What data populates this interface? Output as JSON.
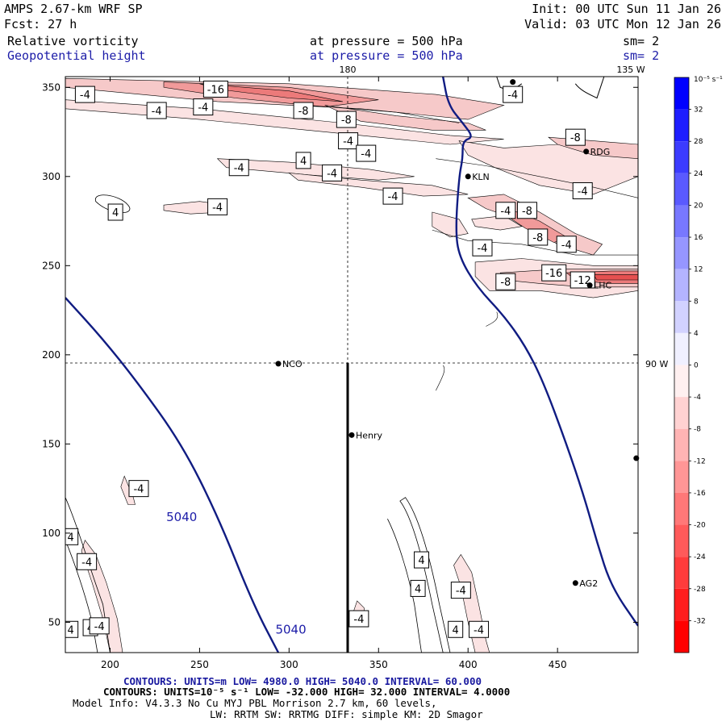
{
  "header": {
    "model": "AMPS 2.67-km WRF SP",
    "init": "Init: 00 UTC Sun 11 Jan 26",
    "fcst": "Fcst:    27 h",
    "valid": "Valid: 03 UTC Mon 12 Jan 26",
    "field1": "Relative vorticity",
    "pressure1": "at pressure =  500 hPa",
    "sm1": "sm= 2",
    "field2": "Geopotential height",
    "pressure2": "at pressure =  500 hPa",
    "sm2": "sm= 2"
  },
  "footer": {
    "contours1": "CONTOURS:  UNITS=m  LOW=  4980.0         HIGH=  5040.0         INTERVAL=   60.000",
    "contours2": "CONTOURS:  UNITS=10⁻⁵ s⁻¹  LOW=  -32.000        HIGH=  32.000        INTERVAL=   4.0000",
    "model_info": "Model Info: V4.3.3    No Cu    MYJ PBL  Morrison         2.7 km,  60 levels,",
    "physics": "LW: RRTM SW: RRTMG   DIFF: simple KM: 2D Smagor"
  },
  "colors": {
    "height_contour": "#101c82",
    "header_blue": "#1c1ca8",
    "footer_blue": "#1a1aa0"
  },
  "chart_data": {
    "type": "contour-map",
    "x_range": [
      175,
      495
    ],
    "y_range": [
      33,
      356
    ],
    "x_ticks": [
      200,
      250,
      300,
      350,
      400,
      450
    ],
    "y_ticks": [
      50,
      100,
      150,
      200,
      250,
      300,
      350
    ],
    "grid_labels": {
      "meridian_180": "180",
      "meridian_135w": "135 W",
      "lat_90": "90 W"
    },
    "grid_lines": {
      "vertical_x": 334,
      "horizontal_y": 196
    },
    "cross_section": {
      "x": 334,
      "y_from": 33,
      "y_to": 196
    },
    "stations": [
      {
        "name": "NCO",
        "x": 294,
        "y": 195
      },
      {
        "name": "Henry",
        "x": 335,
        "y": 155
      },
      {
        "name": "KLN",
        "x": 400,
        "y": 300
      },
      {
        "name": "RDG",
        "x": 466,
        "y": 314
      },
      {
        "name": "LHC",
        "x": 468,
        "y": 239
      },
      {
        "name": "AG2",
        "x": 460,
        "y": 72
      },
      {
        "name": "",
        "x": 494,
        "y": 142
      },
      {
        "name": "",
        "x": 425,
        "y": 353
      }
    ],
    "height_contours": [
      {
        "value": 5040,
        "label": "5040",
        "label_x": 240,
        "label_y": 108,
        "points": [
          [
            175,
            232
          ],
          [
            195,
            210
          ],
          [
            215,
            185
          ],
          [
            240,
            150
          ],
          [
            260,
            110
          ],
          [
            280,
            60
          ],
          [
            294,
            33
          ]
        ]
      },
      {
        "value": 5040,
        "label": "5040",
        "label_x": 301,
        "label_y": 45,
        "points": [
          [
            386,
            356
          ],
          [
            389,
            340
          ],
          [
            397,
            330
          ],
          [
            403,
            322
          ],
          [
            397,
            320
          ],
          [
            397,
            310
          ],
          [
            395,
            300
          ],
          [
            393,
            270
          ],
          [
            395,
            255
          ],
          [
            405,
            238
          ],
          [
            420,
            222
          ],
          [
            432,
            205
          ],
          [
            442,
            185
          ],
          [
            455,
            150
          ],
          [
            465,
            120
          ],
          [
            472,
            95
          ],
          [
            480,
            70
          ],
          [
            495,
            48
          ]
        ]
      }
    ],
    "vorticity_labels": [
      {
        "text": "-4",
        "x": 186,
        "y": 346
      },
      {
        "text": "-16",
        "x": 259,
        "y": 349
      },
      {
        "text": "-4",
        "x": 226,
        "y": 337
      },
      {
        "text": "-4",
        "x": 252,
        "y": 339
      },
      {
        "text": "-8",
        "x": 308,
        "y": 337
      },
      {
        "text": "-8",
        "x": 332,
        "y": 332
      },
      {
        "text": "-4",
        "x": 333,
        "y": 320
      },
      {
        "text": "-4",
        "x": 343,
        "y": 313
      },
      {
        "text": "-4",
        "x": 425,
        "y": 346
      },
      {
        "text": "4",
        "x": 308,
        "y": 309
      },
      {
        "text": "-4",
        "x": 272,
        "y": 305
      },
      {
        "text": "-4",
        "x": 324,
        "y": 302
      },
      {
        "text": "-4",
        "x": 260,
        "y": 283
      },
      {
        "text": "4",
        "x": 203,
        "y": 280
      },
      {
        "text": "-4",
        "x": 358,
        "y": 289
      },
      {
        "text": "-8",
        "x": 460,
        "y": 322
      },
      {
        "text": "-4",
        "x": 464,
        "y": 292
      },
      {
        "text": "-4",
        "x": 421,
        "y": 281
      },
      {
        "text": "-8",
        "x": 433,
        "y": 281
      },
      {
        "text": "-8",
        "x": 439,
        "y": 266
      },
      {
        "text": "-4",
        "x": 455,
        "y": 262
      },
      {
        "text": "-4",
        "x": 408,
        "y": 260
      },
      {
        "text": "-16",
        "x": 448,
        "y": 246
      },
      {
        "text": "-12",
        "x": 464,
        "y": 242
      },
      {
        "text": "-8",
        "x": 421,
        "y": 241
      },
      {
        "text": "-4",
        "x": 216,
        "y": 125
      },
      {
        "text": "4",
        "x": 178,
        "y": 98
      },
      {
        "text": "-4",
        "x": 187,
        "y": 84
      },
      {
        "text": "4",
        "x": 178,
        "y": 46
      },
      {
        "text": "4",
        "x": 189,
        "y": 47
      },
      {
        "text": "-4",
        "x": 194,
        "y": 48
      },
      {
        "text": "-4",
        "x": 339,
        "y": 52
      },
      {
        "text": "4",
        "x": 374,
        "y": 85
      },
      {
        "text": "4",
        "x": 372,
        "y": 69
      },
      {
        "text": "-4",
        "x": 396,
        "y": 68
      },
      {
        "text": "4",
        "x": 393,
        "y": 46
      },
      {
        "text": "-4",
        "x": 406,
        "y": 46
      }
    ],
    "colorbar": {
      "title": "10⁻⁵ s⁻¹",
      "min": -36,
      "max": 36,
      "step": 4,
      "tick_labels": [
        "32",
        "28",
        "24",
        "20",
        "16",
        "12",
        "8",
        "4",
        "0",
        "-4",
        "-8",
        "-12",
        "-16",
        "-20",
        "-24",
        "-28",
        "-32"
      ]
    }
  }
}
